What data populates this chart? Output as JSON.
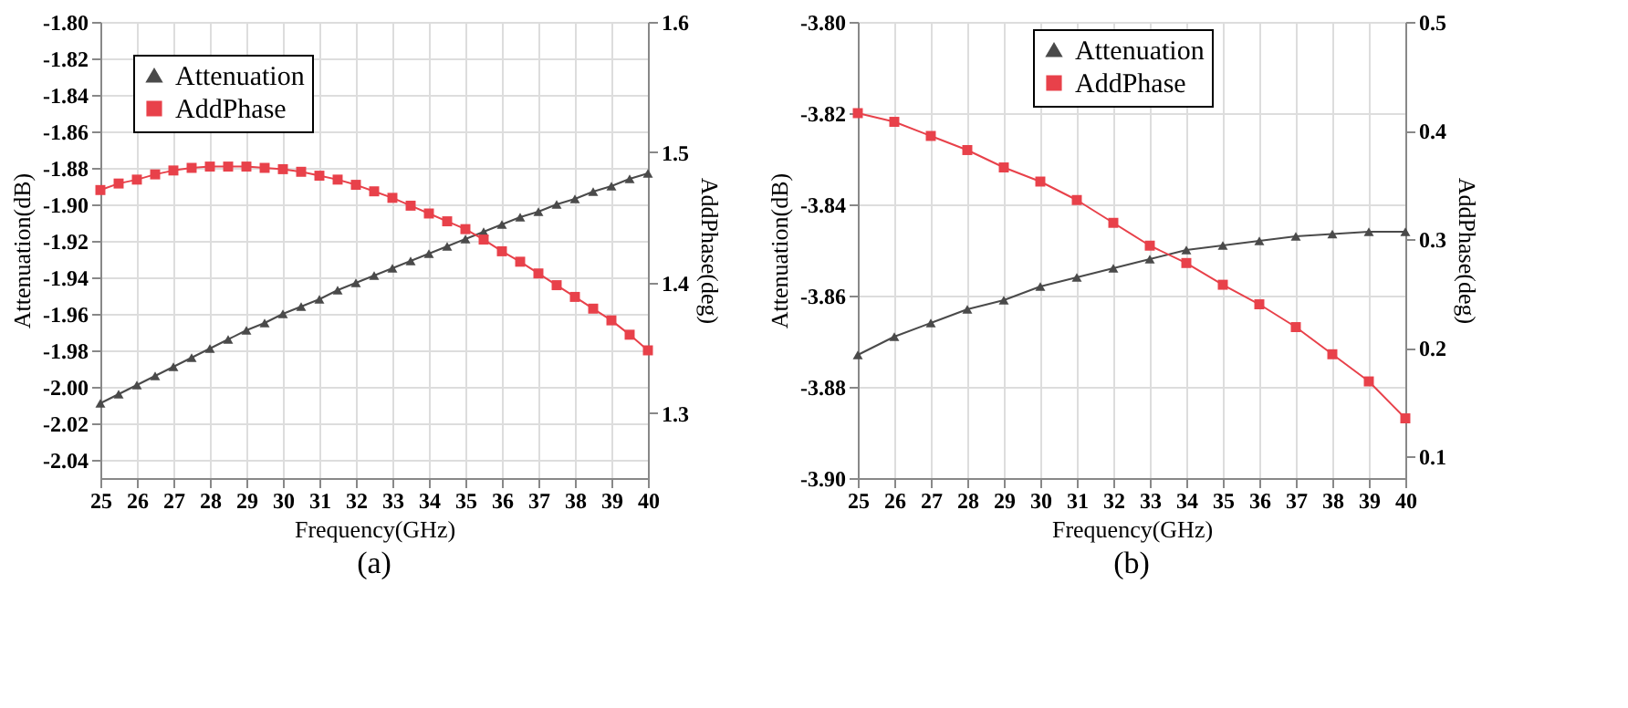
{
  "chart_data": [
    {
      "type": "line",
      "xlabel": "Frequency(GHz)",
      "ylabel": "Attenuation(dB)",
      "y2label": "AddPhase(deg)",
      "annotations": [
        "(a)"
      ],
      "x": [
        25,
        25.5,
        26,
        26.5,
        27,
        27.5,
        28,
        28.5,
        29,
        29.5,
        30,
        30.5,
        31,
        31.5,
        32,
        32.5,
        33,
        33.5,
        34,
        34.5,
        35,
        35.5,
        36,
        36.5,
        37,
        37.5,
        38,
        38.5,
        39,
        39.5,
        40
      ],
      "series": [
        {
          "name": "Attenuation",
          "color": "#4a4a4a",
          "marker": "triangle",
          "values": [
            -2.009,
            -2.004,
            -1.999,
            -1.994,
            -1.989,
            -1.984,
            -1.979,
            -1.974,
            -1.969,
            -1.965,
            -1.96,
            -1.956,
            -1.952,
            -1.947,
            -1.943,
            -1.939,
            -1.935,
            -1.931,
            -1.927,
            -1.923,
            -1.919,
            -1.915,
            -1.911,
            -1.907,
            -1.904,
            -1.9,
            -1.897,
            -1.893,
            -1.89,
            -1.886,
            -1.883
          ]
        },
        {
          "name": "AddPhase",
          "color": "#e8414a",
          "marker": "square",
          "axis": "y2",
          "values": [
            1.471,
            1.476,
            1.479,
            1.483,
            1.486,
            1.488,
            1.489,
            1.489,
            1.489,
            1.488,
            1.487,
            1.485,
            1.482,
            1.479,
            1.475,
            1.47,
            1.465,
            1.459,
            1.453,
            1.447,
            1.441,
            1.433,
            1.424,
            1.416,
            1.407,
            1.398,
            1.389,
            1.38,
            1.371,
            1.36,
            1.348
          ]
        }
      ],
      "xlim": [
        25,
        40
      ],
      "xticks": [
        25,
        26,
        27,
        28,
        29,
        30,
        31,
        32,
        33,
        34,
        35,
        36,
        37,
        38,
        39,
        40
      ],
      "ylim": [
        -2.05,
        -1.8
      ],
      "yticks": [
        {
          "value": -2.04,
          "label": "-2.04"
        },
        {
          "value": -2.02,
          "label": "-2.02"
        },
        {
          "value": -2.0,
          "label": "-2.00"
        },
        {
          "value": -1.98,
          "label": "-1.98"
        },
        {
          "value": -1.96,
          "label": "-1.96"
        },
        {
          "value": -1.94,
          "label": "-1.94"
        },
        {
          "value": -1.92,
          "label": "-1.92"
        },
        {
          "value": -1.9,
          "label": "-1.90"
        },
        {
          "value": -1.88,
          "label": "-1.88"
        },
        {
          "value": -1.86,
          "label": "-1.86"
        },
        {
          "value": -1.84,
          "label": "-1.84"
        },
        {
          "value": -1.82,
          "label": "-1.82"
        },
        {
          "value": -1.8,
          "label": "-1.80"
        }
      ],
      "y2lim": [
        1.25,
        1.6
      ],
      "y2ticks": [
        1.3,
        1.4,
        1.5,
        1.6
      ],
      "grid": true,
      "legend": "top left"
    },
    {
      "type": "line",
      "xlabel": "Frequency(GHz)",
      "ylabel": "Attenuation(dB)",
      "y2label": "AddPhase(deg)",
      "annotations": [
        "(b)"
      ],
      "x": [
        25,
        26,
        27,
        28,
        29,
        30,
        31,
        32,
        33,
        34,
        35,
        36,
        37,
        38,
        39,
        40
      ],
      "series": [
        {
          "name": "Attenuation",
          "color": "#4a4a4a",
          "marker": "triangle",
          "values": [
            -3.873,
            -3.869,
            -3.866,
            -3.863,
            -3.861,
            -3.858,
            -3.856,
            -3.854,
            -3.852,
            -3.85,
            -3.849,
            -3.848,
            -3.847,
            -3.8465,
            -3.846,
            -3.846
          ]
        },
        {
          "name": "AddPhase",
          "color": "#e8414a",
          "marker": "square",
          "axis": "y2",
          "values": [
            0.416,
            0.408,
            0.395,
            0.382,
            0.366,
            0.353,
            0.336,
            0.315,
            0.294,
            0.278,
            0.258,
            0.24,
            0.219,
            0.194,
            0.169,
            0.135
          ]
        }
      ],
      "xlim": [
        25,
        40
      ],
      "xticks": [
        25,
        26,
        27,
        28,
        29,
        30,
        31,
        32,
        33,
        34,
        35,
        36,
        37,
        38,
        39,
        40
      ],
      "ylim": [
        -3.9,
        -3.8
      ],
      "yticks": [
        {
          "value": -3.9,
          "label": "-3.90"
        },
        {
          "value": -3.88,
          "label": "-3.88"
        },
        {
          "value": -3.86,
          "label": "-3.86"
        },
        {
          "value": -3.84,
          "label": "-3.84"
        },
        {
          "value": -3.82,
          "label": "-3.82"
        },
        {
          "value": -3.8,
          "label": "-3.80"
        }
      ],
      "y2lim": [
        0.08,
        0.5
      ],
      "y2ticks": [
        0.1,
        0.2,
        0.3,
        0.4,
        0.5
      ],
      "grid": true,
      "legend": "top"
    }
  ]
}
